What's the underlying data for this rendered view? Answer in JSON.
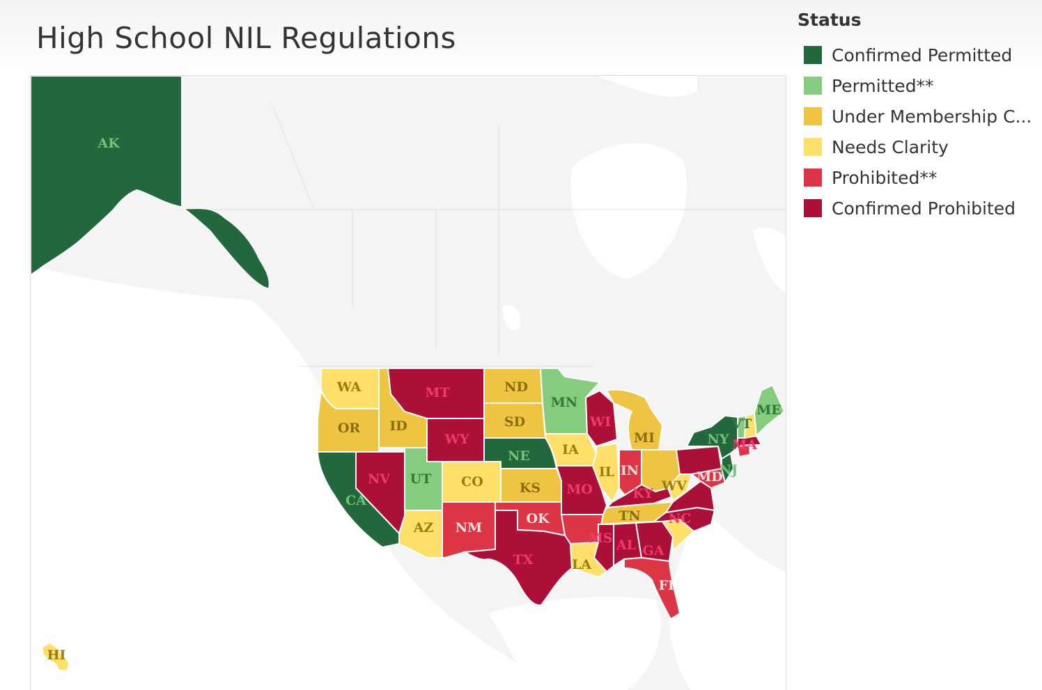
{
  "title": "High School NIL Regulations",
  "legend": {
    "title": "Status",
    "items": [
      {
        "label": "Confirmed Permitted",
        "color": "#22683c"
      },
      {
        "label": "Permitted**",
        "color": "#86cc7f"
      },
      {
        "label": "Under Membership C...",
        "color": "#edc542"
      },
      {
        "label": "Needs Clarity",
        "color": "#fde06a"
      },
      {
        "label": "Prohibited**",
        "color": "#dc3646"
      },
      {
        "label": "Confirmed Prohibited",
        "color": "#ac0f38"
      }
    ]
  },
  "states": {
    "AK": {
      "label": "AK",
      "status": "Confirmed Permitted"
    },
    "HI": {
      "label": "HI",
      "status": "Needs Clarity"
    },
    "WA": {
      "label": "WA",
      "status": "Needs Clarity"
    },
    "OR": {
      "label": "OR",
      "status": "Under Membership C..."
    },
    "CA": {
      "label": "CA",
      "status": "Confirmed Permitted"
    },
    "ID": {
      "label": "ID",
      "status": "Under Membership C..."
    },
    "NV": {
      "label": "NV",
      "status": "Confirmed Prohibited"
    },
    "MT": {
      "label": "MT",
      "status": "Confirmed Prohibited"
    },
    "WY": {
      "label": "WY",
      "status": "Confirmed Prohibited"
    },
    "UT": {
      "label": "UT",
      "status": "Permitted**"
    },
    "AZ": {
      "label": "AZ",
      "status": "Needs Clarity"
    },
    "CO": {
      "label": "CO",
      "status": "Needs Clarity"
    },
    "NM": {
      "label": "NM",
      "status": "Prohibited**"
    },
    "ND": {
      "label": "ND",
      "status": "Under Membership C..."
    },
    "SD": {
      "label": "SD",
      "status": "Under Membership C..."
    },
    "NE": {
      "label": "NE",
      "status": "Confirmed Permitted"
    },
    "KS": {
      "label": "KS",
      "status": "Under Membership C..."
    },
    "OK": {
      "label": "OK",
      "status": "Prohibited**"
    },
    "TX": {
      "label": "TX",
      "status": "Confirmed Prohibited"
    },
    "MN": {
      "label": "MN",
      "status": "Permitted**"
    },
    "IA": {
      "label": "IA",
      "status": "Needs Clarity"
    },
    "MO": {
      "label": "MO",
      "status": "Confirmed Prohibited"
    },
    "AR": {
      "label": "",
      "status": "Prohibited**"
    },
    "LA": {
      "label": "LA",
      "status": "Needs Clarity"
    },
    "WI": {
      "label": "WI",
      "status": "Confirmed Prohibited"
    },
    "IL": {
      "label": "IL",
      "status": "Needs Clarity"
    },
    "MI": {
      "label": "MI",
      "status": "Under Membership C..."
    },
    "IN": {
      "label": "IN",
      "status": "Prohibited**"
    },
    "OH": {
      "label": "",
      "status": "Under Membership C..."
    },
    "KY": {
      "label": "KY",
      "status": "Confirmed Prohibited"
    },
    "TN": {
      "label": "TN",
      "status": "Under Membership C..."
    },
    "MS": {
      "label": "MS",
      "status": "Confirmed Prohibited"
    },
    "AL": {
      "label": "AL",
      "status": "Confirmed Prohibited"
    },
    "GA": {
      "label": "GA",
      "status": "Confirmed Prohibited"
    },
    "FL": {
      "label": "FL",
      "status": "Prohibited**"
    },
    "SC": {
      "label": "",
      "status": "Needs Clarity"
    },
    "NC": {
      "label": "NC",
      "status": "Confirmed Prohibited"
    },
    "VA": {
      "label": "",
      "status": "Confirmed Prohibited"
    },
    "WV": {
      "label": "WV",
      "status": "Needs Clarity"
    },
    "PA": {
      "label": "",
      "status": "Confirmed Prohibited"
    },
    "MD": {
      "label": "MD",
      "status": "Prohibited**"
    },
    "NJ": {
      "label": "NJ",
      "status": "Confirmed Permitted"
    },
    "NY": {
      "label": "NY",
      "status": "Confirmed Permitted"
    },
    "CT": {
      "label": "",
      "status": "Prohibited**"
    },
    "MA": {
      "label": "MA",
      "status": "Confirmed Prohibited"
    },
    "VT": {
      "label": "VT",
      "status": "Permitted**"
    },
    "NH": {
      "label": "",
      "status": "Needs Clarity"
    },
    "ME": {
      "label": "ME",
      "status": "Permitted**"
    }
  }
}
